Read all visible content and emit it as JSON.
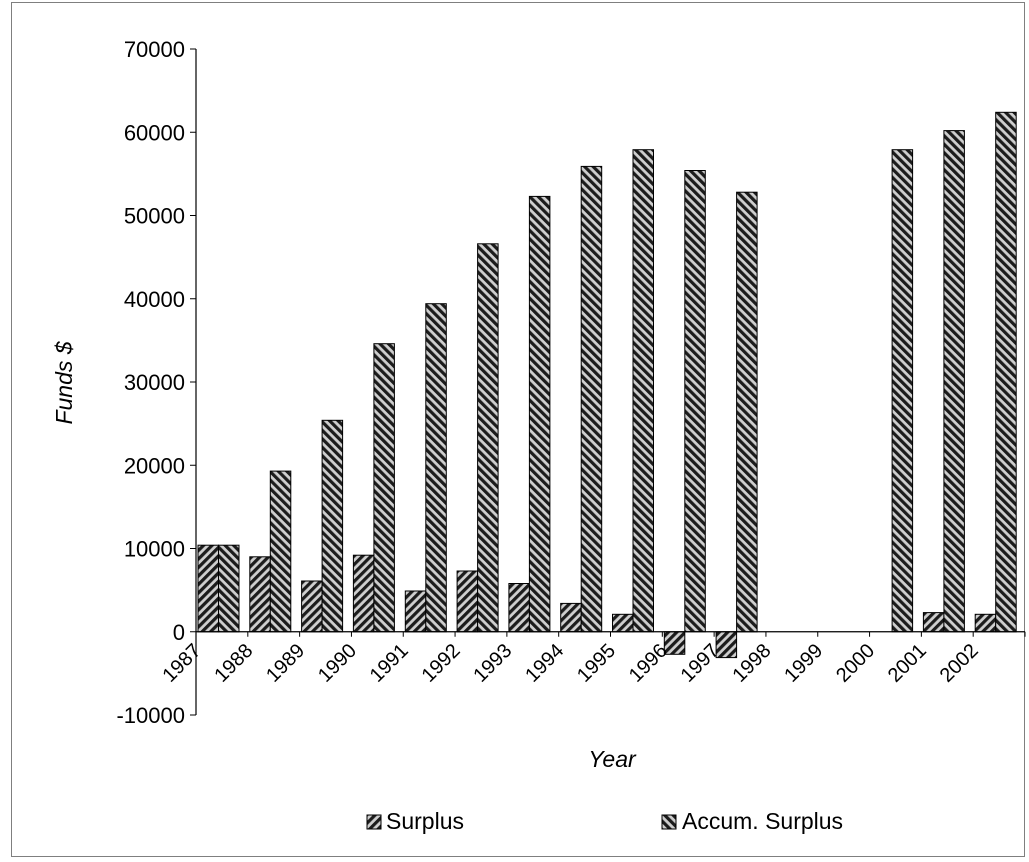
{
  "chart_data": {
    "type": "bar",
    "title": "",
    "xlabel": "Year",
    "ylabel": "Funds $",
    "ylim": [
      -10000,
      70000
    ],
    "y_ticks": [
      70000,
      60000,
      50000,
      40000,
      30000,
      20000,
      10000,
      0,
      -10000
    ],
    "y_tick_labels": [
      "70000",
      "60000",
      "50000",
      "40000",
      "30000",
      "20000",
      "10000",
      "0",
      "-10000"
    ],
    "categories": [
      "1987",
      "1988",
      "1989",
      "1990",
      "1991",
      "1992",
      "1993",
      "1994",
      "1995",
      "1996",
      "1997",
      "1998",
      "1999",
      "2000",
      "2001",
      "2002"
    ],
    "series": [
      {
        "name": "Surplus",
        "values": [
          10400,
          9000,
          6100,
          9200,
          4900,
          7300,
          5800,
          3400,
          2100,
          -2700,
          -3100,
          0,
          0,
          0,
          2300,
          2100
        ],
        "pattern": "diagonal-down"
      },
      {
        "name": "Accum. Surplus",
        "values": [
          10400,
          19300,
          25400,
          34600,
          39400,
          46600,
          52300,
          55900,
          57900,
          55400,
          52800,
          0,
          0,
          57900,
          60200,
          62400
        ],
        "pattern": "diagonal-up"
      }
    ],
    "legend_position": "bottom",
    "grid": false,
    "colors": {
      "bar_dark": "#1f1f1f",
      "bar_light": "#bdbdbd",
      "axis": "#000000",
      "frame": "#7f7f7f"
    }
  }
}
